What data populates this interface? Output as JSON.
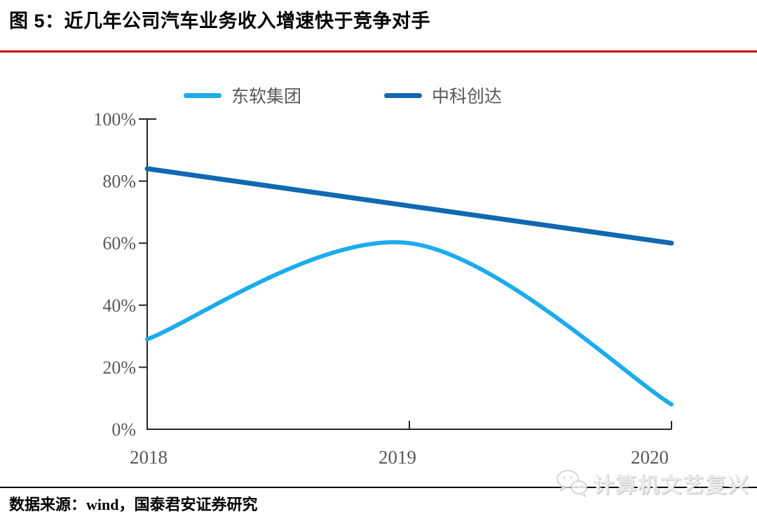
{
  "header": {
    "title": "图 5：近几年公司汽车业务收入增速快于竞争对手",
    "rule_color": "#C00000"
  },
  "chart_data": {
    "type": "line",
    "title": "近几年公司汽车业务收入增速快于竞争对手",
    "x_labels": [
      "2018",
      "2019",
      "2020"
    ],
    "y_tick_labels": [
      "100%",
      "80%",
      "60%",
      "40%",
      "20%",
      "0%"
    ],
    "ylim": [
      0,
      100
    ],
    "y_unit": "%",
    "grid": false,
    "legend_position": "top",
    "axis_color": "#262626",
    "tick_label_color": "#595959",
    "series": [
      {
        "name": "东软集团",
        "color": "#1CACEC",
        "values": [
          29,
          60,
          8
        ],
        "style": "smooth"
      },
      {
        "name": "中科创达",
        "color": "#1268B1",
        "values": [
          84,
          72,
          60
        ],
        "style": "straight"
      }
    ]
  },
  "footer": {
    "source_note": "数据来源：wind，国泰君安证券研究",
    "rule_color": "#000000"
  },
  "watermark": {
    "label": "计算机文艺复兴",
    "icon": "wechat-icon"
  }
}
